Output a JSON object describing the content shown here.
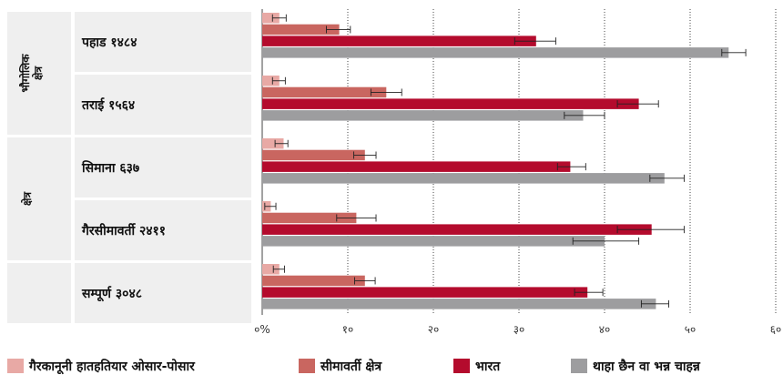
{
  "chart_data": {
    "type": "bar",
    "orientation": "horizontal",
    "categories": [
      "पहाड १४८४",
      "तराई १५६४",
      "सिमाना ६३७",
      "गैरसीमावर्ती २४११",
      "सम्पूर्ण ३०४८"
    ],
    "groups": [
      {
        "label": "भौगोलिक क्षेत्र",
        "categories": [
          0,
          1
        ]
      },
      {
        "label": "क्षेत्र",
        "categories": [
          2,
          3
        ]
      },
      {
        "label": "",
        "categories": [
          4
        ]
      }
    ],
    "series": [
      {
        "name": "गैरकानूनी हातहतियार ओसार-पोसार",
        "color": "#e8a9a5",
        "values": [
          2,
          2,
          2.5,
          1,
          2
        ],
        "error": [
          [
            1.2,
            2.8
          ],
          [
            1.2,
            2.7
          ],
          [
            1.5,
            3.0
          ],
          [
            0.3,
            1.6
          ],
          [
            1.3,
            2.6
          ]
        ]
      },
      {
        "name": "सीमावर्ती क्षेत्र",
        "color": "#c96660",
        "values": [
          9,
          14.5,
          12,
          11,
          12
        ],
        "error": [
          [
            7.5,
            10.3
          ],
          [
            12.7,
            16.3
          ],
          [
            10.7,
            13.3
          ],
          [
            8.7,
            13.3
          ],
          [
            10.8,
            13.2
          ]
        ]
      },
      {
        "name": "भारत",
        "color": "#b40b2d",
        "values": [
          32,
          44,
          36,
          45.5,
          38
        ],
        "error": [
          [
            29.5,
            34.3
          ],
          [
            41.5,
            46.3
          ],
          [
            34.5,
            37.8
          ],
          [
            41.5,
            49.3
          ],
          [
            36.5,
            39.8
          ]
        ]
      },
      {
        "name": "थाहा छैन वा भन्न चाहन्न",
        "color": "#9d9d9f",
        "values": [
          54.5,
          37.5,
          47,
          40,
          46
        ],
        "error": [
          [
            53.7,
            56.5
          ],
          [
            35.3,
            40
          ],
          [
            45.3,
            49.3
          ],
          [
            36.3,
            44
          ],
          [
            44.3,
            47.5
          ]
        ]
      }
    ],
    "xticks": [
      "०%",
      "१०",
      "२०",
      "३०",
      "४०",
      "५०",
      "६०"
    ],
    "xlim": [
      0,
      60
    ],
    "grid": "vertical dotted",
    "legend": "bottom"
  }
}
